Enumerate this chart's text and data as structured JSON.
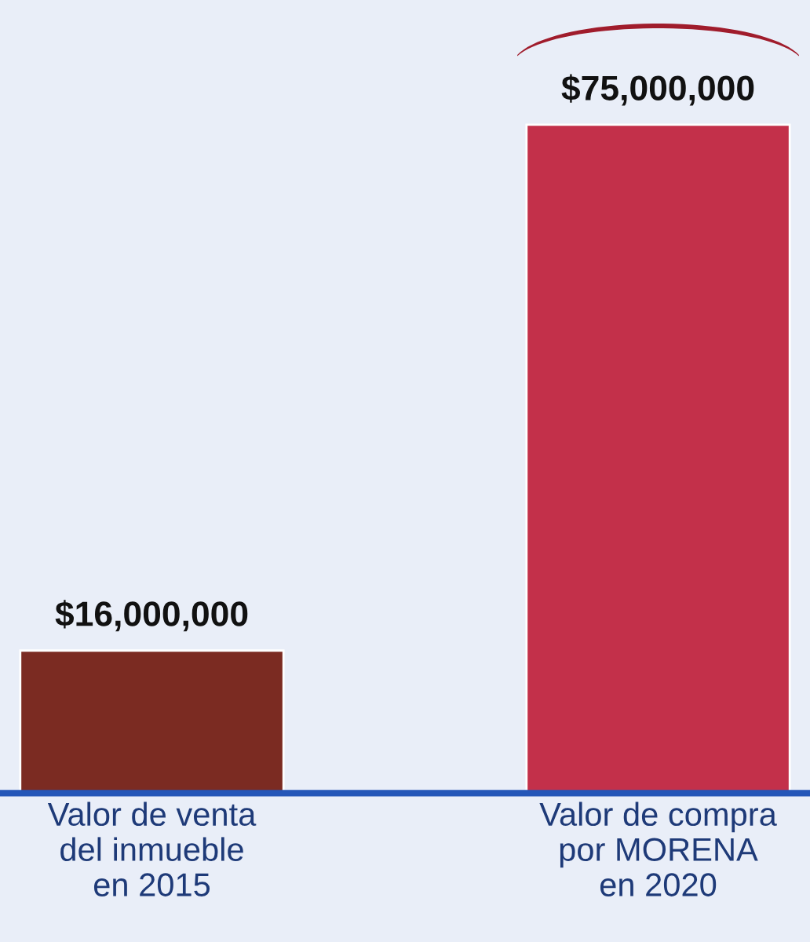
{
  "chart_data": {
    "type": "bar",
    "categories": [
      "Valor de venta\ndel inmueble\nen 2015",
      "Valor de compra\npor MORENA\nen 2020"
    ],
    "values": [
      16000000,
      75000000
    ],
    "colors": [
      "#7b2b22",
      "#c3304a"
    ],
    "value_labels": [
      "$16,000,000",
      "$75,000,000"
    ],
    "ylim": [
      0,
      89000000
    ],
    "tick_labels": "x",
    "grid": false,
    "legend": false
  }
}
